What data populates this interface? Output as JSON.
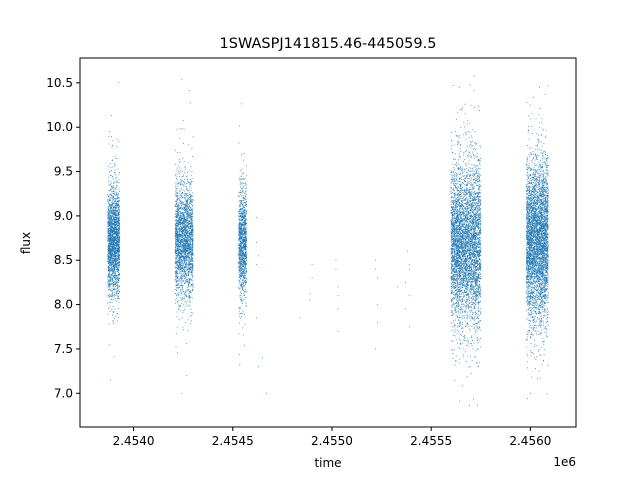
{
  "chart_data": {
    "type": "scatter",
    "title": "1SWASPJ141815.46-445059.5",
    "xlabel": "time",
    "ylabel": "flux",
    "x_offset_label": "1e6",
    "xlim": [
      2.45373,
      2.45623
    ],
    "ylim": [
      6.62,
      10.78
    ],
    "x_ticks": [
      2.454,
      2.4545,
      2.455,
      2.4555,
      2.456
    ],
    "x_tick_labels": [
      "2.4540",
      "2.4545",
      "2.4550",
      "2.4555",
      "2.4560"
    ],
    "y_ticks": [
      7.0,
      7.5,
      8.0,
      8.5,
      9.0,
      9.5,
      10.0,
      10.5
    ],
    "y_tick_labels": [
      "7.0",
      "7.5",
      "8.0",
      "8.5",
      "9.0",
      "9.5",
      "10.0",
      "10.5"
    ],
    "grid": false,
    "series_color": "#1f77b4",
    "observing_seasons": [
      {
        "x_start": 2.45387,
        "x_end": 2.45393,
        "y_center": 8.72,
        "y_spread": 0.3,
        "y_min": 7.0,
        "y_max": 10.55,
        "points": 2000
      },
      {
        "x_start": 2.45421,
        "x_end": 2.4543,
        "y_center": 8.72,
        "y_spread": 0.32,
        "y_min": 6.8,
        "y_max": 10.55,
        "points": 2200
      },
      {
        "x_start": 2.45453,
        "x_end": 2.45457,
        "y_center": 8.7,
        "y_spread": 0.3,
        "y_min": 6.9,
        "y_max": 10.5,
        "points": 1100
      },
      {
        "x_start": 2.4556,
        "x_end": 2.45575,
        "y_center": 8.68,
        "y_spread": 0.45,
        "y_min": 6.85,
        "y_max": 10.6,
        "points": 4200
      },
      {
        "x_start": 2.45598,
        "x_end": 2.45609,
        "y_center": 8.72,
        "y_spread": 0.45,
        "y_min": 6.85,
        "y_max": 10.55,
        "points": 4000
      }
    ],
    "sparse_points": [
      {
        "x": 2.45462,
        "y": 8.98
      },
      {
        "x": 2.45462,
        "y": 8.7
      },
      {
        "x": 2.45462,
        "y": 8.45
      },
      {
        "x": 2.45462,
        "y": 7.85
      },
      {
        "x": 2.45463,
        "y": 7.3
      },
      {
        "x": 2.45465,
        "y": 7.4
      },
      {
        "x": 2.45463,
        "y": 8.55
      },
      {
        "x": 2.45467,
        "y": 7.0
      },
      {
        "x": 2.45484,
        "y": 7.85
      },
      {
        "x": 2.4549,
        "y": 8.45
      },
      {
        "x": 2.4549,
        "y": 8.3
      },
      {
        "x": 2.45489,
        "y": 8.12
      },
      {
        "x": 2.45489,
        "y": 8.05
      },
      {
        "x": 2.45502,
        "y": 8.5
      },
      {
        "x": 2.45502,
        "y": 8.4
      },
      {
        "x": 2.45503,
        "y": 8.2
      },
      {
        "x": 2.45503,
        "y": 8.1
      },
      {
        "x": 2.45503,
        "y": 7.95
      },
      {
        "x": 2.45503,
        "y": 7.7
      },
      {
        "x": 2.45522,
        "y": 8.5
      },
      {
        "x": 2.45522,
        "y": 8.4
      },
      {
        "x": 2.45523,
        "y": 8.3
      },
      {
        "x": 2.45523,
        "y": 8.0
      },
      {
        "x": 2.45523,
        "y": 7.8
      },
      {
        "x": 2.45522,
        "y": 7.5
      },
      {
        "x": 2.45533,
        "y": 8.2
      },
      {
        "x": 2.45537,
        "y": 8.25
      },
      {
        "x": 2.45538,
        "y": 8.6
      },
      {
        "x": 2.45539,
        "y": 8.45
      },
      {
        "x": 2.45539,
        "y": 8.4
      },
      {
        "x": 2.45539,
        "y": 8.1
      },
      {
        "x": 2.45539,
        "y": 7.75
      },
      {
        "x": 2.45537,
        "y": 7.95
      }
    ]
  }
}
